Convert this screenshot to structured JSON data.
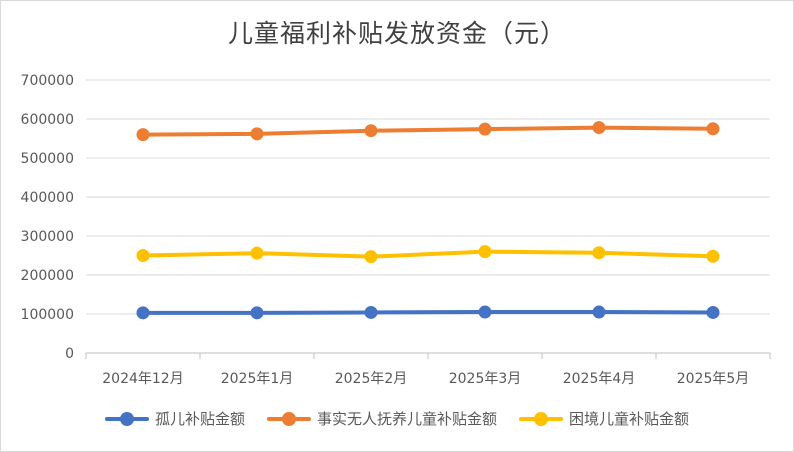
{
  "chart_data": {
    "type": "line",
    "title": "儿童福利补贴发放资金（元）",
    "categories": [
      "2024年12月",
      "2025年1月",
      "2025年2月",
      "2025年3月",
      "2025年4月",
      "2025年5月"
    ],
    "ylim": [
      0,
      700000
    ],
    "yticks": [
      "0",
      "100000",
      "200000",
      "300000",
      "400000",
      "500000",
      "600000",
      "700000"
    ],
    "grid": true,
    "legend_position": "bottom",
    "series": [
      {
        "name": "孤儿补贴金额",
        "color": "#4472C4",
        "values": [
          103000,
          103000,
          104000,
          105000,
          105000,
          104000
        ]
      },
      {
        "name": "事实无人抚养儿童补贴金额",
        "color": "#ED7D31",
        "values": [
          560000,
          562000,
          570000,
          574000,
          578000,
          575000
        ]
      },
      {
        "name": "困境儿童补贴金额",
        "color": "#FFC000",
        "values": [
          250000,
          256000,
          247000,
          260000,
          257000,
          248000
        ]
      }
    ]
  }
}
